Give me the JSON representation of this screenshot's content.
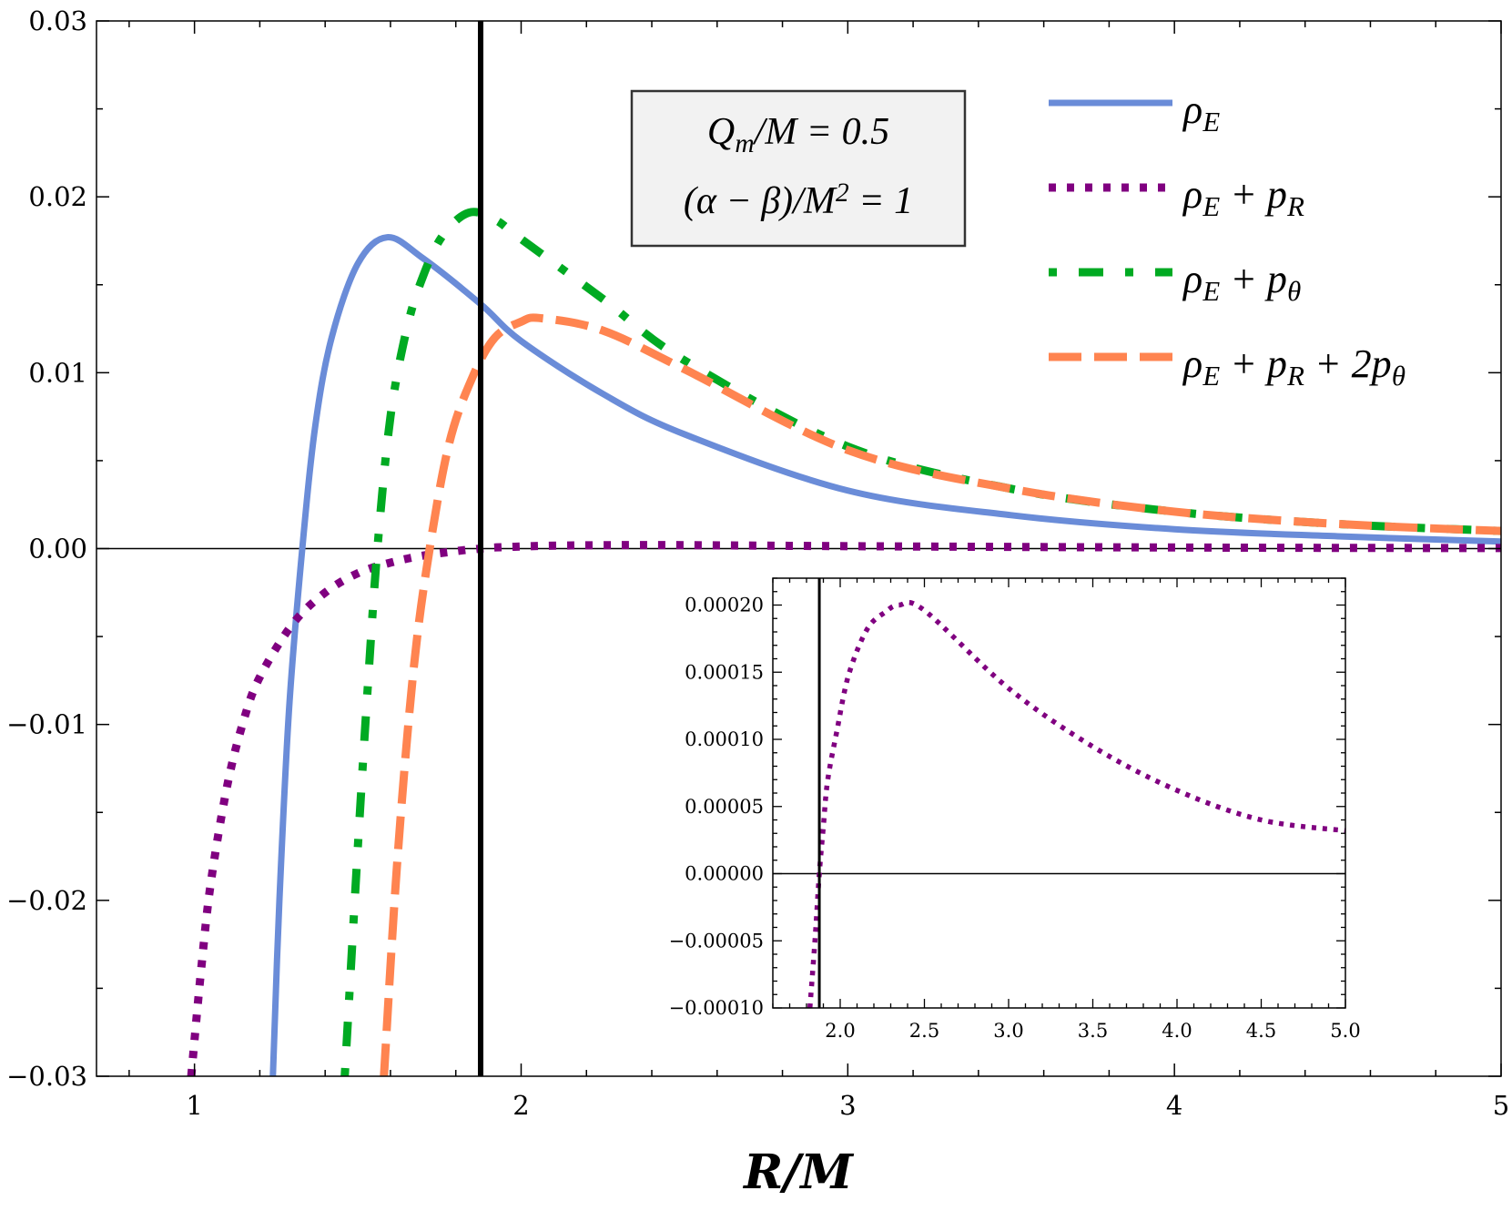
{
  "chart_data": [
    {
      "type": "line",
      "xlabel": "R/M",
      "ylabel": "",
      "xlim": [
        0.7,
        5
      ],
      "ylim": [
        -0.03,
        0.03
      ],
      "xticks": [
        "1",
        "2",
        "3",
        "4",
        "5"
      ],
      "yticks": [
        "−0.03",
        "−0.02",
        "−0.01",
        "0.00",
        "0.01",
        "0.02",
        "0.03"
      ],
      "grid": false,
      "legend_position": "top-right",
      "annotation_box": [
        "Q_m/M = 0.5",
        "(α − β)/M^2 = 1"
      ],
      "vertical_line_x": 1.876,
      "horizontal_line_y": 0,
      "series": [
        {
          "name": "ρ_E",
          "color": "#6a8cd8",
          "style": "solid",
          "x": [
            1.24,
            1.26,
            1.29,
            1.33,
            1.37,
            1.42,
            1.5,
            1.59,
            1.7,
            1.876,
            2.0,
            2.25,
            2.5,
            3.0,
            3.5,
            4.0,
            4.5,
            5.0
          ],
          "y": [
            -0.03,
            -0.02,
            -0.009,
            0,
            0.007,
            0.012,
            0.0162,
            0.0177,
            0.0165,
            0.0139,
            0.0118,
            0.0088,
            0.0065,
            0.0033,
            0.0019,
            0.0011,
            0.0007,
            0.0004
          ]
        },
        {
          "name": "ρ_E + p_R",
          "color": "#800080",
          "style": "dotted",
          "x": [
            0.99,
            1.02,
            1.05,
            1.1,
            1.15,
            1.2,
            1.3,
            1.4,
            1.5,
            1.6,
            1.7,
            1.82,
            1.85,
            1.876,
            1.9,
            1.925,
            1.98,
            2.05,
            2.16,
            2.27,
            2.35,
            2.5,
            3.0,
            3.5,
            4.0,
            4.5,
            5.0
          ],
          "y": [
            -0.03,
            -0.024,
            -0.019,
            -0.0135,
            -0.0098,
            -0.0073,
            -0.0043,
            -0.0025,
            -0.0014,
            -0.0008,
            -0.0004,
            -0.0001,
            -5e-05,
            0,
            3.5e-05,
            6.9e-05,
            0.000106,
            0.000148,
            0.000182,
            0.000195,
            0.0002,
            0.000196,
            0.000138,
            9.46e-05,
            6.2e-05,
            4e-05,
            3.2e-05
          ]
        },
        {
          "name": "ρ_E + p_θ",
          "color": "#00aa22",
          "style": "dash-dot",
          "x": [
            1.46,
            1.5,
            1.53,
            1.56,
            1.6,
            1.65,
            1.7,
            1.76,
            1.84,
            1.92,
            2.0,
            2.25,
            2.5,
            3.0,
            3.5,
            4.0,
            4.5,
            5.0
          ],
          "y": [
            -0.03,
            -0.017,
            -0.008,
            0,
            0.0075,
            0.0125,
            0.0155,
            0.0178,
            0.0191,
            0.0187,
            0.0176,
            0.0142,
            0.0107,
            0.0058,
            0.0034,
            0.0021,
            0.0014,
            0.001
          ]
        },
        {
          "name": "ρ_E + p_R + 2p_θ",
          "color": "#ff8450",
          "style": "dashed",
          "x": [
            1.58,
            1.62,
            1.67,
            1.72,
            1.78,
            1.85,
            1.92,
            2.0,
            2.06,
            2.25,
            2.5,
            3.0,
            3.5,
            4.0,
            4.5,
            5.0
          ],
          "y": [
            -0.03,
            -0.018,
            -0.007,
            0,
            0.006,
            0.0097,
            0.012,
            0.0129,
            0.0131,
            0.0124,
            0.0102,
            0.0056,
            0.0034,
            0.0021,
            0.0014,
            0.001
          ]
        }
      ]
    },
    {
      "type": "line",
      "xlim": [
        1.6,
        5.0
      ],
      "ylim": [
        -0.0001,
        0.00022
      ],
      "xticks": [
        "2.0",
        "2.5",
        "3.0",
        "3.5",
        "4.0",
        "4.5",
        "5.0"
      ],
      "yticks": [
        "−0.00010",
        "−0.00005",
        "0.00000",
        "0.00005",
        "0.00010",
        "0.00015",
        "0.00020"
      ],
      "vertical_line_x": 1.876,
      "horizontal_line_y": 0,
      "series": [
        {
          "ref": "ρ_E + p_R",
          "color": "#800080",
          "style": "dotted"
        }
      ]
    }
  ]
}
